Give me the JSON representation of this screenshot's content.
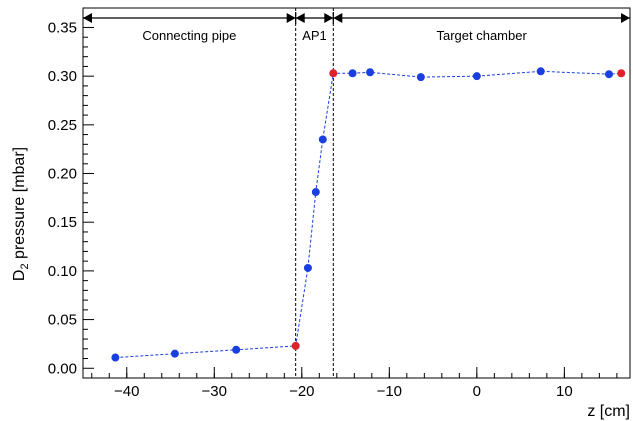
{
  "chart_data": {
    "type": "scatter",
    "title": "",
    "xlabel": "z [cm]",
    "ylabel_main": "D",
    "ylabel_sub": "2",
    "ylabel_rest": " pressure [mbar]",
    "xlim": [
      -45,
      17.5
    ],
    "ylim": [
      -0.01,
      0.37
    ],
    "xticks": [
      -40,
      -30,
      -20,
      -10,
      0,
      10
    ],
    "xtick_labels": [
      "−40",
      "−30",
      "−20",
      "−10",
      "0",
      "10"
    ],
    "yticks": [
      0.0,
      0.05,
      0.1,
      0.15,
      0.2,
      0.25,
      0.3,
      0.35
    ],
    "ytick_labels": [
      "0.00",
      "0.05",
      "0.10",
      "0.15",
      "0.20",
      "0.25",
      "0.30",
      "0.35"
    ],
    "grid": false,
    "line_color": "#1a3fe0",
    "point_color": "#1a3fe0",
    "highlight_color": "#e0202a",
    "series": [
      {
        "points": [
          {
            "x": -41.3,
            "y": 0.011,
            "highlight": false
          },
          {
            "x": -34.5,
            "y": 0.015,
            "highlight": false
          },
          {
            "x": -27.5,
            "y": 0.019,
            "highlight": false
          },
          {
            "x": -20.7,
            "y": 0.023,
            "highlight": true
          },
          {
            "x": -19.3,
            "y": 0.103,
            "highlight": false
          },
          {
            "x": -18.4,
            "y": 0.181,
            "highlight": false
          },
          {
            "x": -17.6,
            "y": 0.235,
            "highlight": false
          },
          {
            "x": -16.4,
            "y": 0.303,
            "highlight": true
          },
          {
            "x": -14.2,
            "y": 0.303,
            "highlight": false
          },
          {
            "x": -12.2,
            "y": 0.304,
            "highlight": false
          },
          {
            "x": -6.4,
            "y": 0.299,
            "highlight": false
          },
          {
            "x": 0.0,
            "y": 0.3,
            "highlight": false
          },
          {
            "x": 7.3,
            "y": 0.305,
            "highlight": false
          },
          {
            "x": 15.1,
            "y": 0.302,
            "highlight": false
          },
          {
            "x": 16.5,
            "y": 0.303,
            "highlight": true
          }
        ]
      }
    ],
    "boundaries": [
      -20.7,
      -16.4
    ],
    "regions": [
      {
        "label": "Connecting pipe",
        "from": -45,
        "to": -20.7
      },
      {
        "label": "AP1",
        "from": -20.7,
        "to": -16.4
      },
      {
        "label": "Target chamber",
        "from": -16.4,
        "to": 17.5
      }
    ]
  }
}
